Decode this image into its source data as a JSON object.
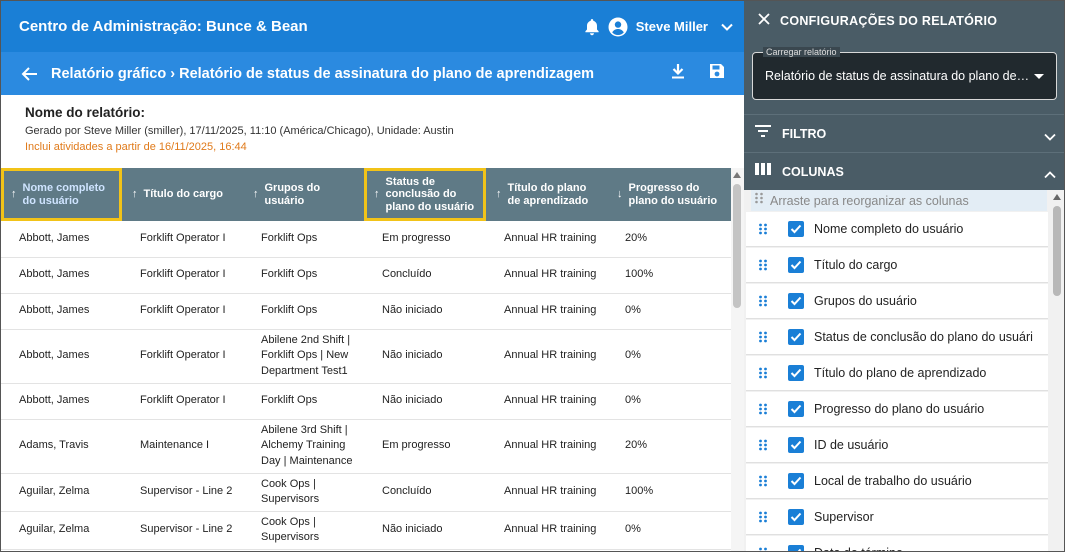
{
  "header": {
    "app_title": "Centro de Administração: Bunce & Bean",
    "user_name": "Steve Miller"
  },
  "subheader": {
    "breadcrumb": "Relatório gráfico › Relatório de status de assinatura do plano de aprendizagem"
  },
  "report": {
    "name_label": "Nome do relatório:",
    "generated": "Gerado por Steve Miller (smiller), 17/11/2025, 11:10 (América/Chicago), Unidade: Austin",
    "since": "Inclui atividades a partir de 16/11/2025, 16:44"
  },
  "table": {
    "columns": [
      {
        "label": "Nome completo do usuário",
        "sort": "↑"
      },
      {
        "label": "Título do cargo",
        "sort": "↑"
      },
      {
        "label": "Grupos do usuário",
        "sort": "↑"
      },
      {
        "label": "Status de conclusão do plano do usuário",
        "sort": "↑"
      },
      {
        "label": "Título do plano de aprendizado",
        "sort": "↑"
      },
      {
        "label": "Progresso do plano do usuário",
        "sort": "↓"
      }
    ],
    "rows": [
      [
        "Abbott, James",
        "Forklift Operator I",
        "Forklift Ops",
        "Em progresso",
        "Annual HR training",
        "20%"
      ],
      [
        "Abbott, James",
        "Forklift Operator I",
        "Forklift Ops",
        "Concluído",
        "Annual HR training",
        "100%"
      ],
      [
        "Abbott, James",
        "Forklift Operator I",
        "Forklift Ops",
        "Não iniciado",
        "Annual HR training",
        "0%"
      ],
      [
        "Abbott, James",
        "Forklift Operator I",
        "Abilene 2nd Shift | Forklift Ops | New Department Test1",
        "Não iniciado",
        "Annual HR training",
        "0%"
      ],
      [
        "Abbott, James",
        "Forklift Operator I",
        "Forklift Ops",
        "Não iniciado",
        "Annual HR training",
        "0%"
      ],
      [
        "Adams, Travis",
        "Maintenance I",
        "Abilene 3rd Shift | Alchemy Training Day | Maintenance",
        "Em progresso",
        "Annual HR training",
        "20%"
      ],
      [
        "Aguilar, Zelma",
        "Supervisor - Line 2",
        "Cook Ops | Supervisors",
        "Concluído",
        "Annual HR training",
        "100%"
      ],
      [
        "Aguilar, Zelma",
        "Supervisor - Line 2",
        "Cook Ops | Supervisors",
        "Não iniciado",
        "Annual HR training",
        "0%"
      ]
    ]
  },
  "panel": {
    "title": "CONFIGURAÇÕES DO RELATÓRIO",
    "load_label": "Carregar relatório",
    "load_value": "Relatório de status de assinatura do plano de aprendizagem",
    "filter_label": "FILTRO",
    "columns_label": "COLUNAS",
    "drag_hint": "Arraste para reorganizar as colunas",
    "column_items": [
      "Nome completo do usuário",
      "Título do cargo",
      "Grupos do usuário",
      "Status de conclusão do plano do usuári",
      "Título do plano de aprendizado",
      "Progresso do plano do usuário",
      "ID de usuário",
      "Local de trabalho do usuário",
      "Supervisor",
      "Data de término"
    ]
  },
  "colors": {
    "topbar": "#1a7fd6",
    "subbar": "#2b8ae0",
    "table_header": "#5f7a86",
    "highlight": "#f2c318",
    "panel": "#4a5c66",
    "accent_orange": "#e07a1a"
  }
}
